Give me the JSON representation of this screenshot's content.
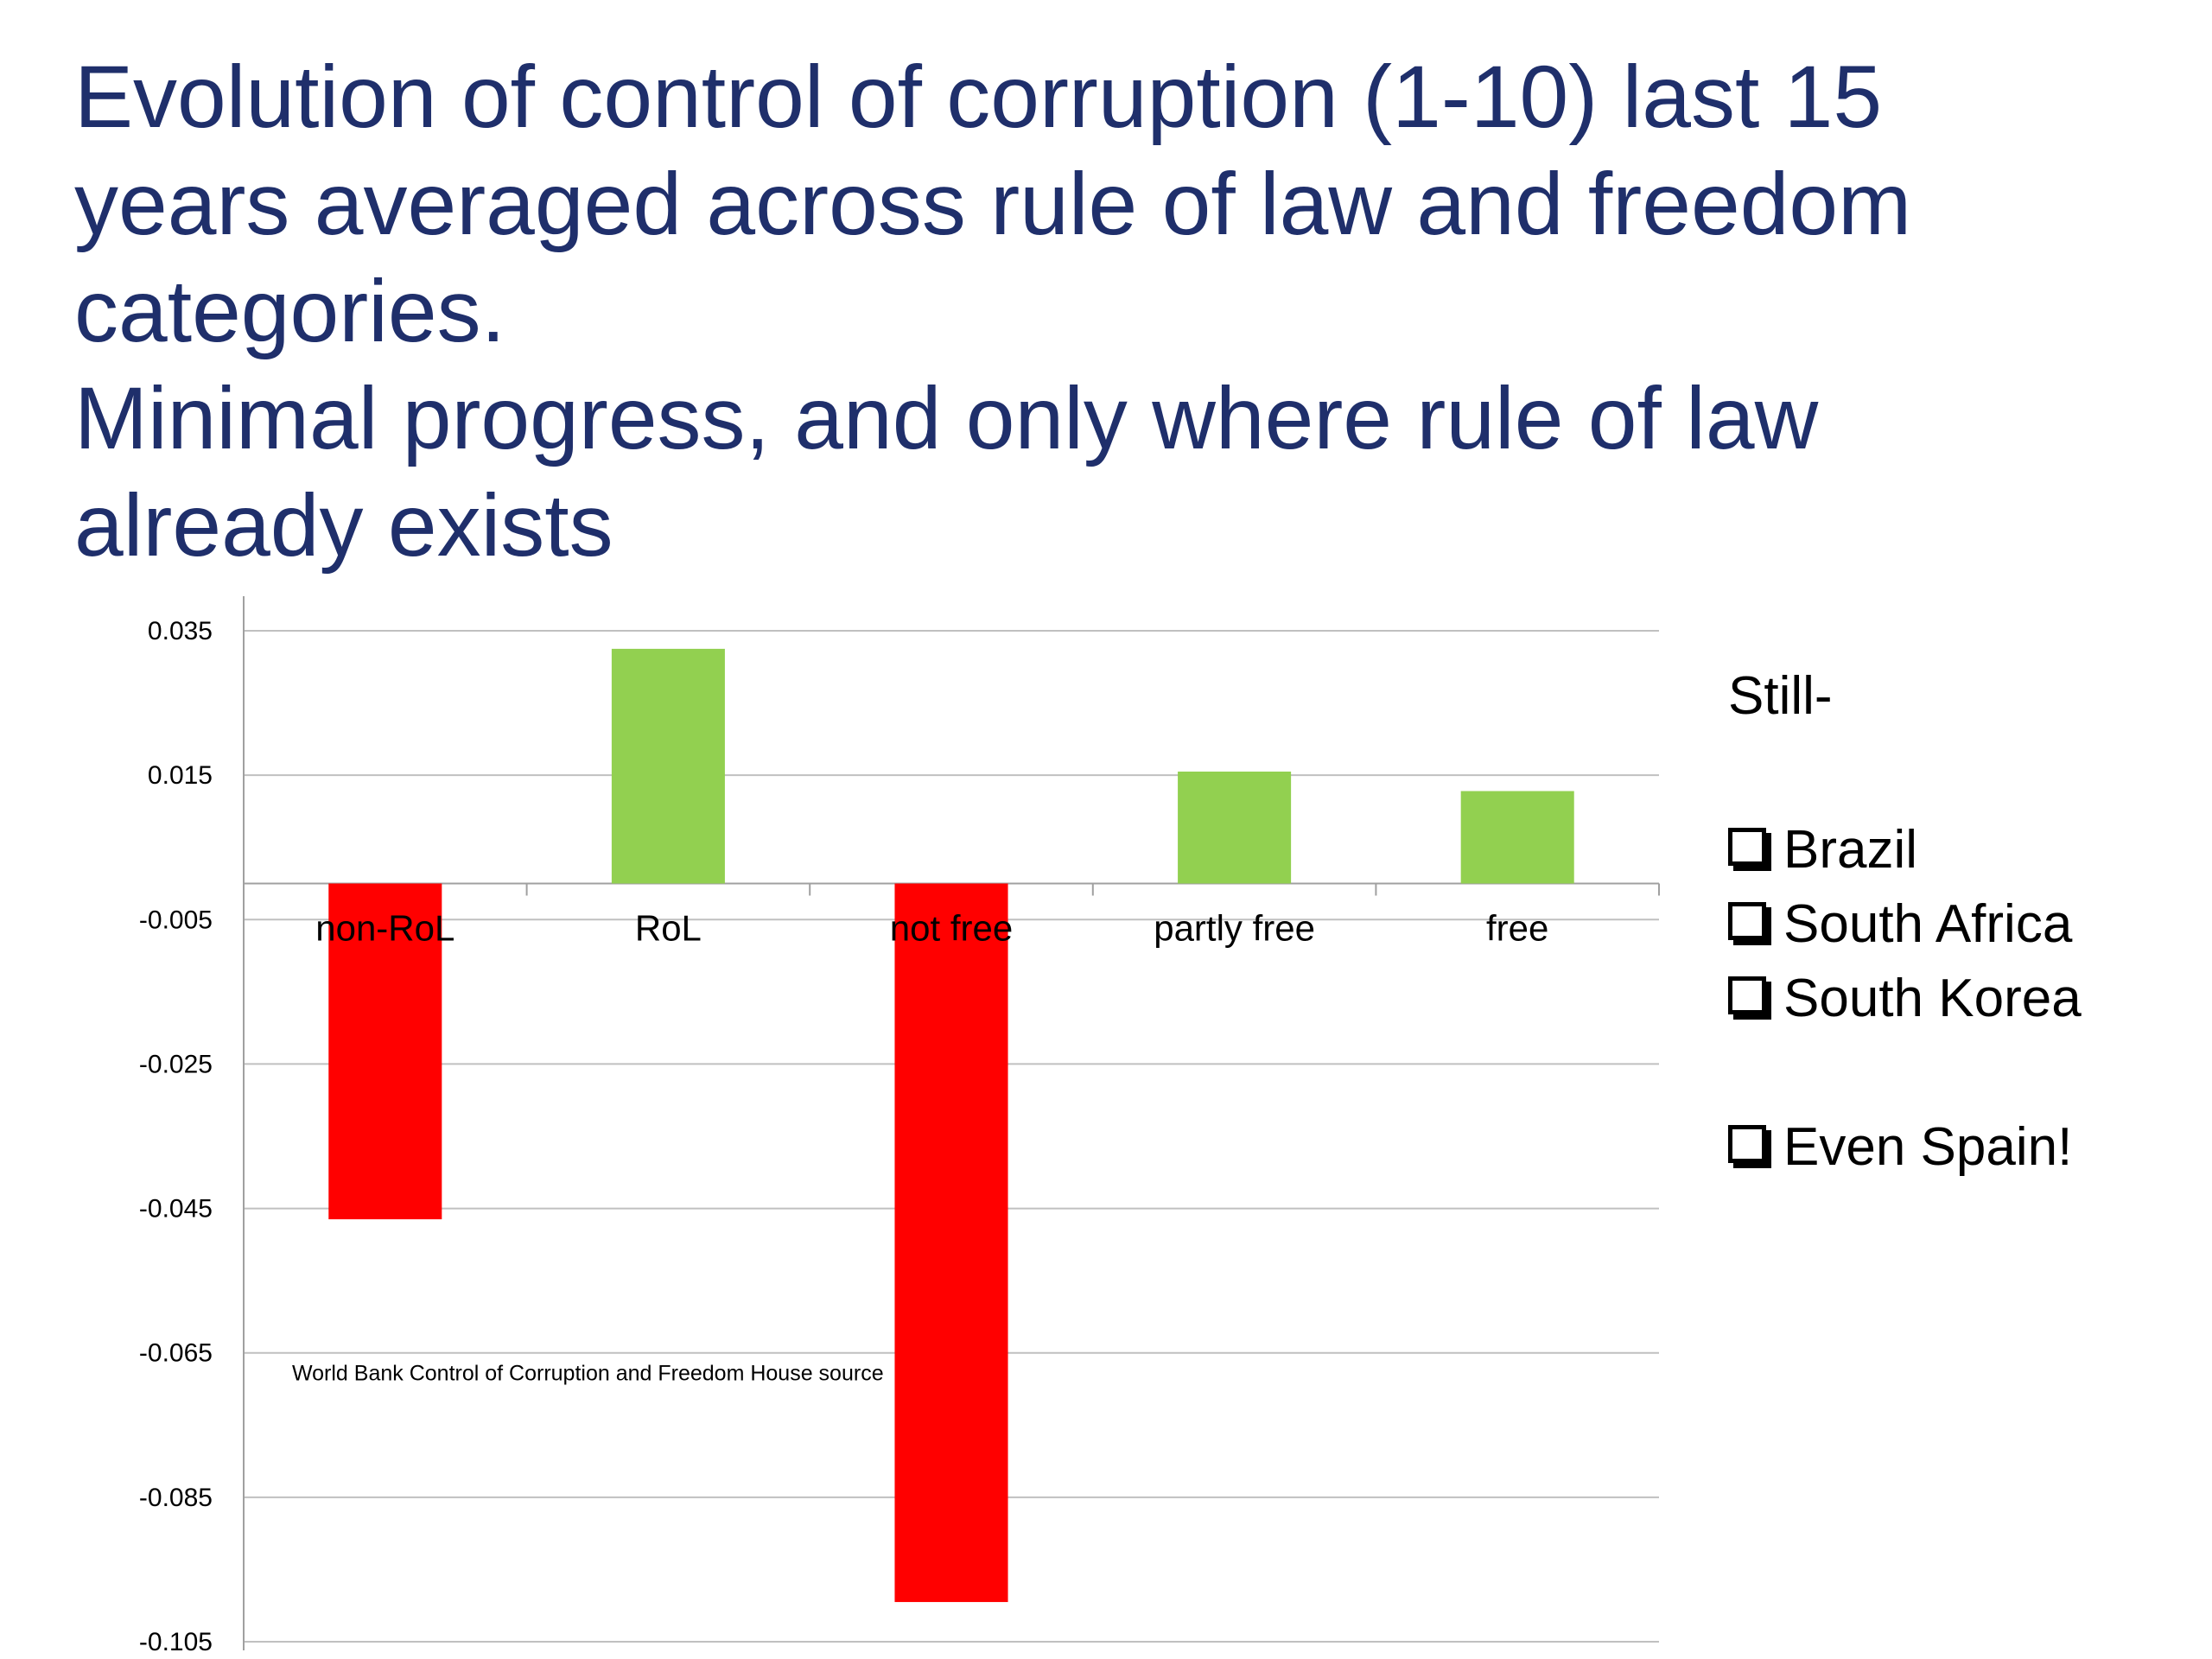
{
  "title": {
    "lines": [
      "Evolution of control of corruption (1-10) last 15",
      "years averaged across rule of law and freedom",
      "categories.",
      "Minimal progress, and only where rule of law",
      "already exists"
    ]
  },
  "chart_data": {
    "type": "bar",
    "categories": [
      "non-RoL",
      "RoL",
      "not free",
      "partly free",
      "free"
    ],
    "values": [
      -0.0465,
      0.0325,
      -0.0995,
      0.0155,
      0.0128
    ],
    "ylim": [
      -0.105,
      0.035
    ],
    "yticks": [
      "0.035",
      "0.015",
      "-0.005",
      "-0.025",
      "-0.045",
      "-0.065",
      "-0.085",
      "-0.105"
    ],
    "title": "",
    "xlabel": "",
    "ylabel": "",
    "annotation": "World Bank Control of Corruption and Freedom House source",
    "colors": {
      "positive": "#92d050",
      "negative": "#ff0000"
    },
    "grid": true,
    "legend": "none"
  },
  "side_note": {
    "heading": "Still-",
    "items": [
      "Brazil",
      "South Africa",
      "South Korea",
      "Even Spain!"
    ]
  }
}
